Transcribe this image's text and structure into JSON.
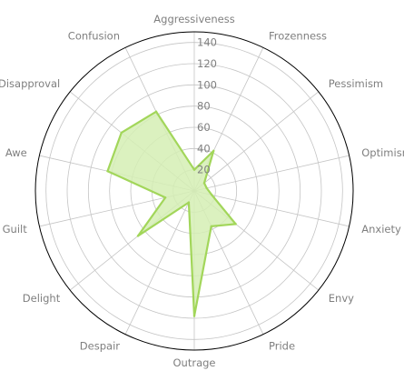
{
  "chart_data": {
    "type": "radar",
    "title": "",
    "categories": [
      "Aggressiveness",
      "Frozenness",
      "Pessimism",
      "Optimism",
      "Anxiety",
      "Envy",
      "Pride",
      "Outrage",
      "Despair",
      "Delight",
      "Guilt",
      "Awe",
      "Disapproval",
      "Confusion"
    ],
    "series": [
      {
        "values": [
          20,
          42,
          12,
          12,
          17,
          50,
          37,
          118,
          12,
          68,
          28,
          84,
          88,
          83
        ]
      }
    ],
    "rlim": [
      0,
      150
    ],
    "r_ticks": [
      20,
      40,
      60,
      80,
      100,
      120,
      140
    ],
    "grid": true,
    "legend": false,
    "colors": {
      "line": "#a2d65a",
      "fill": "#d5efb4",
      "grid": "#c4c4c4",
      "frame": "#000000",
      "text": "#7f7f7f"
    }
  }
}
